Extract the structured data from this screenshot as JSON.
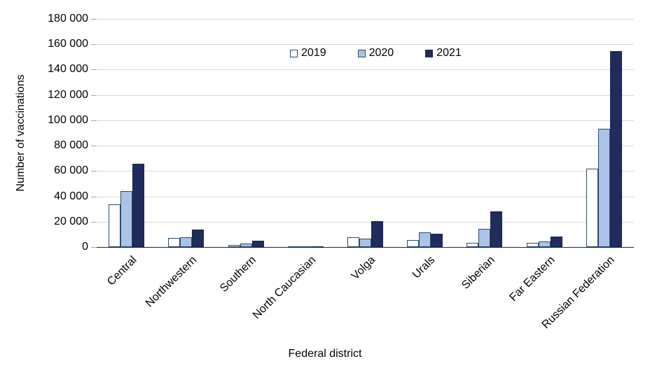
{
  "chart_data": {
    "type": "bar",
    "title": "",
    "xlabel": "Federal district",
    "ylabel": "Number of vaccinations",
    "categories": [
      "Central",
      "Northwestern",
      "Southern",
      "North Caucasian",
      "Volga",
      "Urals",
      "Siberian",
      "Far Eastern",
      "Russian Federation"
    ],
    "series": [
      {
        "name": "2019",
        "fill": "#ffffff",
        "border": "#2e4a6b",
        "values": [
          33500,
          7000,
          1500,
          300,
          7600,
          5500,
          3200,
          3400,
          62000
        ]
      },
      {
        "name": "2020",
        "fill": "#a9c4e8",
        "border": "#2e4a6b",
        "values": [
          44000,
          8000,
          2700,
          500,
          6600,
          11500,
          14500,
          4500,
          93500
        ]
      },
      {
        "name": "2021",
        "fill": "#1f2c5c",
        "border": "#1a2750",
        "values": [
          65500,
          14000,
          4700,
          800,
          20500,
          10500,
          28000,
          8500,
          154500
        ]
      }
    ],
    "ylim": [
      0,
      180000
    ],
    "ytick_step": 20000,
    "ytick_labels": [
      "0",
      "20 000",
      "40 000",
      "60 000",
      "80 000",
      "100 000",
      "120 000",
      "140 000",
      "160 000",
      "180 000"
    ],
    "grid": true,
    "legend_position": "top-center",
    "colors": {
      "gridline": "#d9d9d9",
      "axis_line": "#262626",
      "tick": "#a6a6a6",
      "text": "#000000"
    }
  }
}
